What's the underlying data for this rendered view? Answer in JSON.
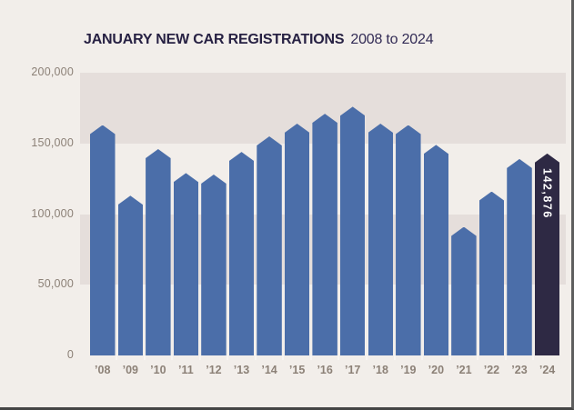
{
  "title": {
    "main": "JANUARY NEW CAR REGISTRATIONS",
    "range": "2008 to 2024"
  },
  "chart_data": {
    "type": "bar",
    "title": "JANUARY NEW CAR REGISTRATIONS 2008 to 2024",
    "categories": [
      "’08",
      "’09",
      "’10",
      "’11",
      "’12",
      "’13",
      "’14",
      "’15",
      "’16",
      "’17",
      "’18",
      "’19",
      "’20",
      "’21",
      "’22",
      "’23",
      "’24"
    ],
    "values": [
      163000,
      113000,
      146000,
      129000,
      128000,
      144000,
      155000,
      164000,
      171000,
      176000,
      164000,
      163000,
      149000,
      91000,
      116000,
      139000,
      142876
    ],
    "highlight": {
      "index": 16,
      "label": "142,876"
    },
    "yticks": [
      {
        "value": 200000,
        "label": "200,000"
      },
      {
        "value": 150000,
        "label": "150,000"
      },
      {
        "value": 100000,
        "label": "100,000"
      },
      {
        "value": 50000,
        "label": "50,000"
      },
      {
        "value": 0,
        "label": "0"
      }
    ],
    "ylim": [
      0,
      200000
    ],
    "grid_bands": [
      [
        150000,
        200000
      ],
      [
        50000,
        100000
      ]
    ],
    "legend": "none",
    "colors": {
      "bar": "#4b6ea9",
      "highlight_bar": "#2e2944",
      "band": "#e5dedb",
      "background": "#f2eeea",
      "title": "#272143",
      "axis_text": "#8c8177",
      "highlight_label": "#ffffff",
      "baseline_tick": "#f8f5f2"
    }
  }
}
